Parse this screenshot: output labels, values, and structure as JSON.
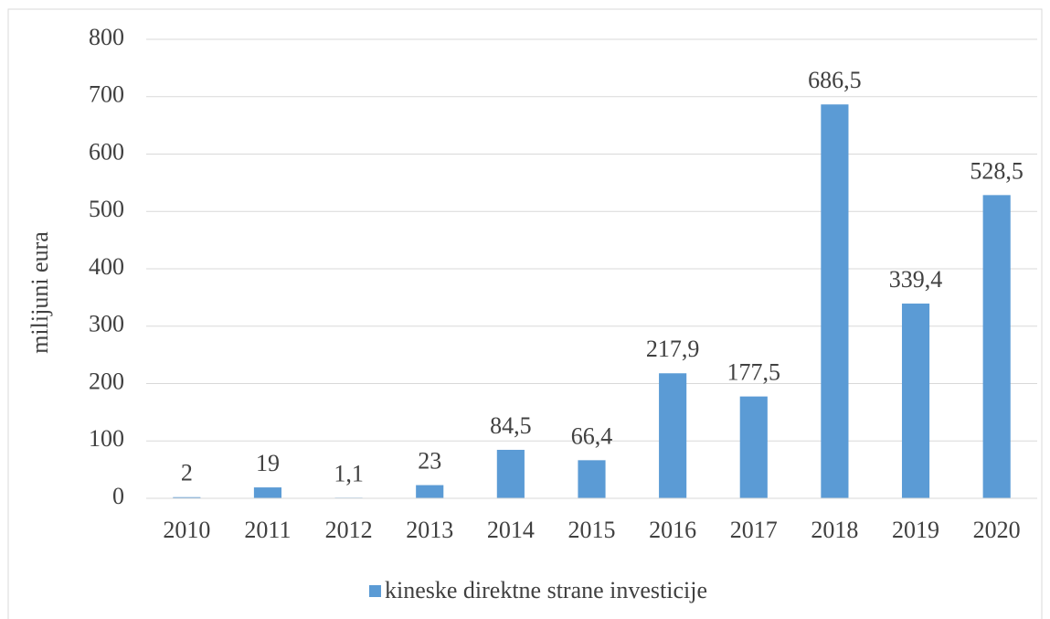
{
  "chart_data": {
    "type": "bar",
    "ylabel": "milijuni eura",
    "categories": [
      "2010",
      "2011",
      "2012",
      "2013",
      "2014",
      "2015",
      "2016",
      "2017",
      "2018",
      "2019",
      "2020"
    ],
    "series": [
      {
        "name": "kineske direktne strane investicije",
        "color": "#5b9bd5",
        "values": [
          2,
          19,
          1.1,
          23,
          84.5,
          66.4,
          217.9,
          177.5,
          686.5,
          339.4,
          528.5
        ],
        "value_labels": [
          "2",
          "19",
          "1,1",
          "23",
          "84,5",
          "66,4",
          "217,9",
          "177,5",
          "686,5",
          "339,4",
          "528,5"
        ]
      }
    ],
    "ylim": [
      0,
      800
    ],
    "yticks": [
      0,
      100,
      200,
      300,
      400,
      500,
      600,
      700,
      800
    ],
    "grid": true,
    "legend": "bottom"
  }
}
